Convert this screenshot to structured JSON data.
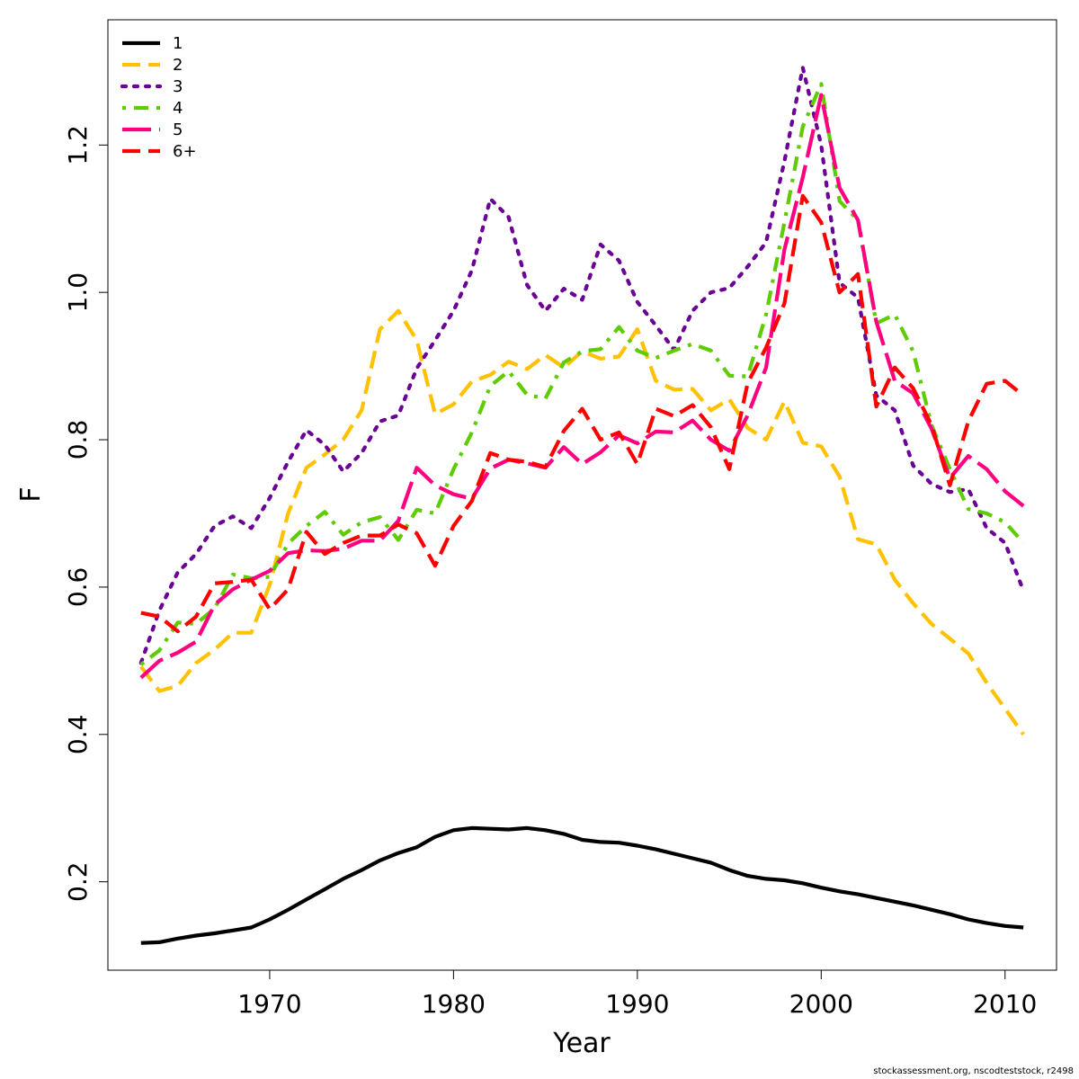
{
  "chart_data": {
    "type": "line",
    "xlabel": "Year",
    "ylabel": "F",
    "xlim": [
      1961.2,
      2012.8
    ],
    "ylim": [
      0.08,
      1.37
    ],
    "xticks": [
      1970,
      1980,
      1990,
      2000,
      2010
    ],
    "yticks": [
      0.2,
      0.4,
      0.6,
      0.8,
      1.0,
      1.2
    ],
    "ytick_labels": [
      "0.2",
      "0.4",
      "0.6",
      "0.8",
      "1.0",
      "1.2"
    ],
    "legend_position": "top-left",
    "x": [
      1963,
      1964,
      1965,
      1966,
      1967,
      1968,
      1969,
      1970,
      1971,
      1972,
      1973,
      1974,
      1975,
      1976,
      1977,
      1978,
      1979,
      1980,
      1981,
      1982,
      1983,
      1984,
      1985,
      1986,
      1987,
      1988,
      1989,
      1990,
      1991,
      1992,
      1993,
      1994,
      1995,
      1996,
      1997,
      1998,
      1999,
      2000,
      2001,
      2002,
      2003,
      2004,
      2005,
      2006,
      2007,
      2008,
      2009,
      2010,
      2011
    ],
    "series": [
      {
        "name": "1",
        "color": "#000000",
        "dash": "solid",
        "values": [
          0.117,
          0.118,
          0.123,
          0.127,
          0.13,
          0.134,
          0.138,
          0.149,
          0.162,
          0.176,
          0.19,
          0.204,
          0.216,
          0.229,
          0.239,
          0.247,
          0.261,
          0.27,
          0.273,
          0.272,
          0.271,
          0.273,
          0.27,
          0.265,
          0.257,
          0.254,
          0.253,
          0.249,
          0.244,
          0.238,
          0.232,
          0.226,
          0.216,
          0.208,
          0.204,
          0.202,
          0.198,
          0.192,
          0.187,
          0.183,
          0.178,
          0.173,
          0.168,
          0.162,
          0.156,
          0.149,
          0.144,
          0.14,
          0.138
        ]
      },
      {
        "name": "2",
        "color": "#ffc100",
        "dash": "dashed",
        "values": [
          0.492,
          0.459,
          0.466,
          0.497,
          0.515,
          0.538,
          0.538,
          0.603,
          0.7,
          0.762,
          0.78,
          0.8,
          0.84,
          0.95,
          0.975,
          0.935,
          0.835,
          0.848,
          0.879,
          0.888,
          0.906,
          0.896,
          0.915,
          0.898,
          0.92,
          0.91,
          0.913,
          0.95,
          0.88,
          0.868,
          0.869,
          0.84,
          0.855,
          0.816,
          0.8,
          0.852,
          0.796,
          0.791,
          0.75,
          0.665,
          0.658,
          0.61,
          0.578,
          0.55,
          0.53,
          0.51,
          0.47,
          0.435,
          0.4
        ]
      },
      {
        "name": "3",
        "color": "#6a0096",
        "dash": "dotted",
        "values": [
          0.497,
          0.568,
          0.62,
          0.645,
          0.683,
          0.696,
          0.68,
          0.721,
          0.77,
          0.813,
          0.793,
          0.757,
          0.782,
          0.825,
          0.833,
          0.897,
          0.935,
          0.975,
          1.03,
          1.127,
          1.102,
          1.01,
          0.975,
          1.005,
          0.99,
          1.065,
          1.043,
          0.987,
          0.955,
          0.922,
          0.975,
          1.0,
          1.006,
          1.035,
          1.068,
          1.178,
          1.305,
          1.2,
          1.013,
          0.993,
          0.86,
          0.84,
          0.765,
          0.74,
          0.729,
          0.733,
          0.68,
          0.66,
          0.595
        ]
      },
      {
        "name": "4",
        "color": "#5ecc00",
        "dash": "dashdot",
        "values": [
          0.495,
          0.514,
          0.552,
          0.55,
          0.571,
          0.617,
          0.612,
          0.614,
          0.659,
          0.683,
          0.702,
          0.671,
          0.688,
          0.695,
          0.664,
          0.705,
          0.7,
          0.76,
          0.81,
          0.873,
          0.893,
          0.861,
          0.856,
          0.905,
          0.92,
          0.923,
          0.953,
          0.921,
          0.911,
          0.921,
          0.93,
          0.921,
          0.887,
          0.886,
          0.97,
          1.095,
          1.225,
          1.283,
          1.124,
          1.098,
          0.958,
          0.97,
          0.92,
          0.82,
          0.76,
          0.706,
          0.7,
          0.688,
          0.66
        ]
      },
      {
        "name": "5",
        "color": "#ff0080",
        "dash": "longdash",
        "values": [
          0.477,
          0.5,
          0.511,
          0.526,
          0.576,
          0.597,
          0.61,
          0.622,
          0.646,
          0.65,
          0.649,
          0.652,
          0.663,
          0.663,
          0.69,
          0.762,
          0.738,
          0.726,
          0.72,
          0.761,
          0.773,
          0.768,
          0.762,
          0.79,
          0.767,
          0.783,
          0.806,
          0.795,
          0.811,
          0.81,
          0.826,
          0.8,
          0.785,
          0.833,
          0.898,
          1.058,
          1.156,
          1.268,
          1.142,
          1.098,
          0.96,
          0.88,
          0.863,
          0.815,
          0.748,
          0.778,
          0.76,
          0.73,
          0.71
        ]
      },
      {
        "name": "6+",
        "color": "#ff0000",
        "dash": "dashed",
        "values": [
          0.565,
          0.56,
          0.54,
          0.56,
          0.605,
          0.607,
          0.61,
          0.57,
          0.597,
          0.675,
          0.645,
          0.66,
          0.67,
          0.67,
          0.685,
          0.673,
          0.629,
          0.683,
          0.717,
          0.782,
          0.773,
          0.77,
          0.763,
          0.812,
          0.842,
          0.8,
          0.81,
          0.767,
          0.842,
          0.832,
          0.847,
          0.817,
          0.76,
          0.877,
          0.925,
          0.985,
          1.131,
          1.095,
          1.0,
          1.025,
          0.845,
          0.898,
          0.87,
          0.82,
          0.738,
          0.825,
          0.876,
          0.88,
          0.86
        ]
      }
    ]
  },
  "credit": "stockassessment.org, nscodteststock, r2498"
}
